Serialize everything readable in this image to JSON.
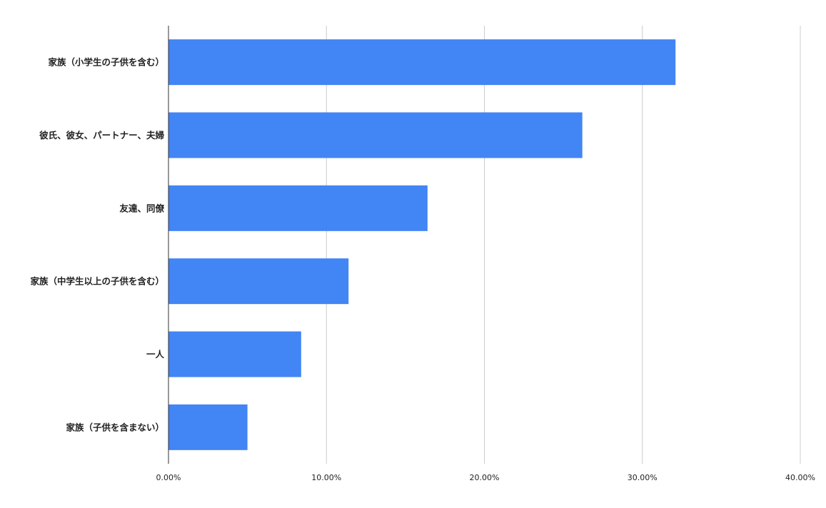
{
  "chart_data": {
    "type": "bar",
    "orientation": "horizontal",
    "categories": [
      "家族（小学生の子供を含む）",
      "彼氏、彼女、パートナー、夫婦",
      "友達、同僚",
      "家族（中学生以上の子供を含む）",
      "一人",
      "家族（子供を含まない）"
    ],
    "values": [
      32.1,
      26.2,
      16.4,
      11.4,
      8.4,
      5.0
    ],
    "xlim": [
      0,
      40
    ],
    "x_ticks": [
      0,
      10,
      20,
      30,
      40
    ],
    "x_tick_labels": [
      "0.00%",
      "10.00%",
      "20.00%",
      "30.00%",
      "40.00%"
    ],
    "grid": "vertical",
    "legend": "none",
    "title": "",
    "xlabel": "",
    "ylabel": "",
    "colors": {
      "bar": "#4285f4",
      "grid": "#cccccc",
      "axis": "#333333",
      "text": "#222222"
    }
  }
}
